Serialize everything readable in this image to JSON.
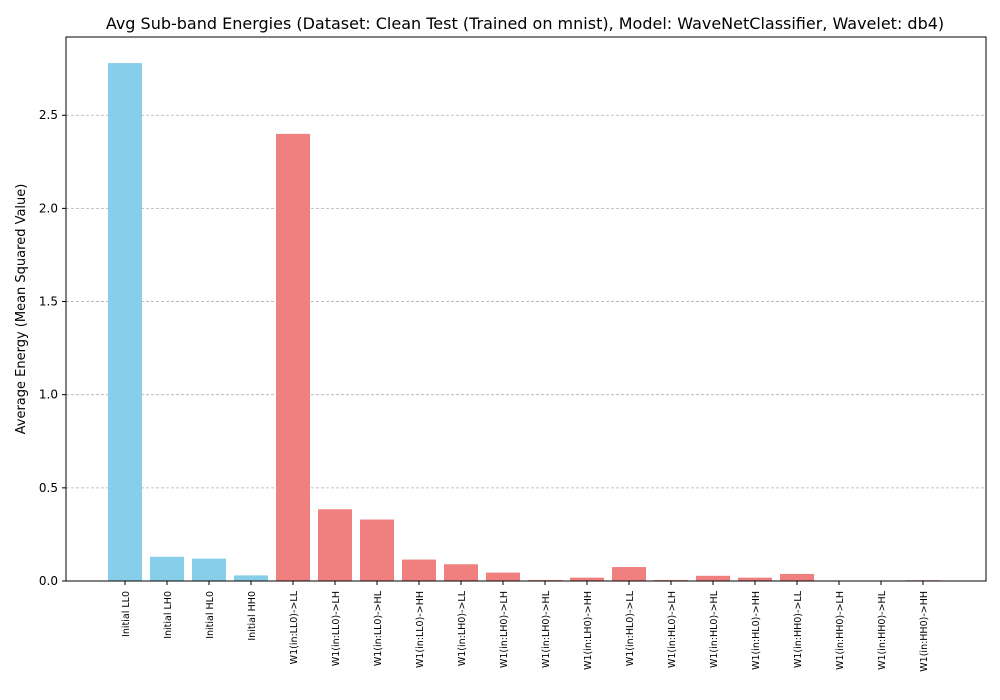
{
  "chart_data": {
    "type": "bar",
    "title": "Avg Sub-band Energies (Dataset: Clean Test (Trained on mnist), Model: WaveNetClassifier, Wavelet: db4)",
    "xlabel": "",
    "ylabel": "Average Energy (Mean Squared Value)",
    "ylim": [
      0,
      2.92
    ],
    "yticks": [
      "0.0",
      "0.5",
      "1.0",
      "1.5",
      "2.0",
      "2.5"
    ],
    "grid": "horizontal-dashed",
    "categories": [
      "Initial LL0",
      "Initial LH0",
      "Initial HL0",
      "Initial HH0",
      "W1(in:LL0)->LL",
      "W1(in:LL0)->LH",
      "W1(in:LL0)->HL",
      "W1(in:LL0)->HH",
      "W1(in:LH0)->LL",
      "W1(in:LH0)->LH",
      "W1(in:LH0)->HL",
      "W1(in:LH0)->HH",
      "W1(in:HL0)->LL",
      "W1(in:HL0)->LH",
      "W1(in:HL0)->HL",
      "W1(in:HL0)->HH",
      "W1(in:HH0)->LL",
      "W1(in:HH0)->LH",
      "W1(in:HH0)->HL",
      "W1(in:HH0)->HH"
    ],
    "values": [
      2.78,
      0.13,
      0.12,
      0.03,
      2.4,
      0.385,
      0.33,
      0.115,
      0.09,
      0.045,
      0.005,
      0.018,
      0.075,
      0.005,
      0.028,
      0.018,
      0.038,
      0.002,
      0.002,
      0.004
    ],
    "colors": [
      "#87ceeb",
      "#87ceeb",
      "#87ceeb",
      "#87ceeb",
      "#f08080",
      "#f08080",
      "#f08080",
      "#f08080",
      "#f08080",
      "#f08080",
      "#f08080",
      "#f08080",
      "#f08080",
      "#f08080",
      "#f08080",
      "#f08080",
      "#f08080",
      "#f08080",
      "#f08080",
      "#f08080"
    ],
    "colors_meaning": {
      "initial": "#87ceeb",
      "w1": "#f08080"
    }
  }
}
